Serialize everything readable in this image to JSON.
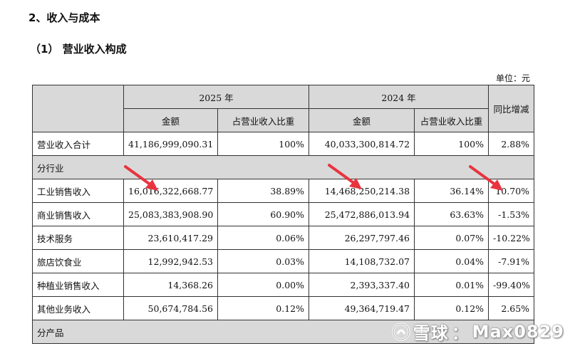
{
  "headings": {
    "section": "2、收入与成本",
    "subsection": "（1） 营业收入构成",
    "unit": "单位：元"
  },
  "table": {
    "year_current": "2025 年",
    "year_prior": "2024 年",
    "col_amount": "金额",
    "col_share": "占营业收入比重",
    "col_yoy": "同比增减",
    "total": {
      "label": "营业收入合计",
      "amount_2025": "41,186,999,090.31",
      "share_2025": "100%",
      "amount_2024": "40,033,300,814.72",
      "share_2024": "100%",
      "yoy": "2.88%"
    },
    "section_industry": "分行业",
    "rows": [
      {
        "label": "工业销售收入",
        "amount_2025": "16,016,322,668.77",
        "share_2025": "38.89%",
        "amount_2024": "14,468,250,214.38",
        "share_2024": "36.14%",
        "yoy": "10.70%"
      },
      {
        "label": "商业销售收入",
        "amount_2025": "25,083,383,908.90",
        "share_2025": "60.90%",
        "amount_2024": "25,472,886,013.94",
        "share_2024": "63.63%",
        "yoy": "-1.53%"
      },
      {
        "label": "技术服务",
        "amount_2025": "23,610,417.29",
        "share_2025": "0.06%",
        "amount_2024": "26,297,797.46",
        "share_2024": "0.07%",
        "yoy": "-10.22%"
      },
      {
        "label": "旅店饮食业",
        "amount_2025": "12,992,942.53",
        "share_2025": "0.03%",
        "amount_2024": "14,108,732.07",
        "share_2024": "0.04%",
        "yoy": "-7.91%"
      },
      {
        "label": "种植业销售收入",
        "amount_2025": "14,368.26",
        "share_2025": "0.00%",
        "amount_2024": "2,393,337.40",
        "share_2024": "0.01%",
        "yoy": "-99.40%"
      },
      {
        "label": "其他业务收入",
        "amount_2025": "50,674,784.56",
        "share_2025": "0.12%",
        "amount_2024": "49,364,719.47",
        "share_2024": "0.12%",
        "yoy": "2.65%"
      }
    ],
    "section_product": "分产品"
  },
  "annotation_color": "#e8343f",
  "watermark": {
    "brand": "雪球",
    "separator": "：",
    "user": "Max0829"
  }
}
